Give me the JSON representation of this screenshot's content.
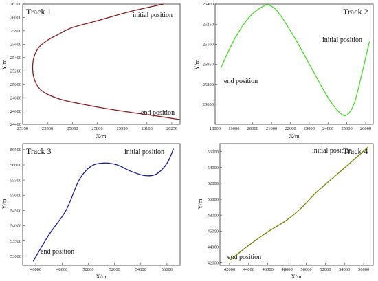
{
  "chart_data": [
    {
      "type": "line",
      "title": "Track 1",
      "xlabel": "X/m",
      "ylabel": "Y/m",
      "xlim": [
        25350,
        26300
      ],
      "ylim": [
        24400,
        26200
      ],
      "xticks": [
        25350,
        25500,
        25650,
        25800,
        25950,
        26100,
        26250
      ],
      "yticks": [
        24400,
        24600,
        24800,
        25000,
        25200,
        25400,
        25600,
        25800,
        26000,
        26200
      ],
      "series": [
        {
          "color": "#8b1a1a",
          "x": [
            26200,
            26000,
            25800,
            25650,
            25560,
            25500,
            25450,
            25420,
            25410,
            25420,
            25450,
            25500,
            25600,
            25800,
            26000,
            26200,
            26300
          ],
          "y": [
            26200,
            26090,
            25950,
            25850,
            25740,
            25660,
            25560,
            25420,
            25250,
            25080,
            24940,
            24850,
            24760,
            24660,
            24580,
            24510,
            24470
          ]
        }
      ],
      "annotations": [
        "initial position",
        "end position"
      ],
      "legend": "none"
    },
    {
      "type": "line",
      "title": "Track 2",
      "xlabel": "X/m",
      "ylabel": "Y/m",
      "xlim": [
        18000,
        26400
      ],
      "ylim": [
        25500,
        26400
      ],
      "xticks": [
        18000,
        19000,
        20000,
        21000,
        22000,
        23000,
        24000,
        25000,
        26000
      ],
      "yticks": [
        25650,
        25800,
        25950,
        26100,
        26250,
        26400
      ],
      "series": [
        {
          "color": "#44dd22",
          "x": [
            18300,
            19000,
            19800,
            20500,
            20900,
            21400,
            22300,
            23200,
            24000,
            24600,
            25000,
            25400,
            25800,
            26200
          ],
          "y": [
            25920,
            26130,
            26300,
            26380,
            26390,
            26330,
            26130,
            25900,
            25700,
            25590,
            25570,
            25660,
            25880,
            26120
          ]
        }
      ],
      "annotations": [
        "initial position",
        "end position"
      ],
      "legend": "none"
    },
    {
      "type": "line",
      "title": "Track 3",
      "xlabel": "X/m",
      "ylabel": "Y/m",
      "xlim": [
        45000,
        57000
      ],
      "ylim": [
        52700,
        56700
      ],
      "xticks": [
        46000,
        48000,
        50000,
        52000,
        54000,
        56000
      ],
      "yticks": [
        53000,
        53500,
        54000,
        54500,
        55000,
        55500,
        56000,
        56500
      ],
      "series": [
        {
          "color": "#1a1a9e",
          "x": [
            45800,
            47000,
            48300,
            49300,
            50200,
            51200,
            52200,
            53200,
            54300,
            55200,
            56000,
            56500
          ],
          "y": [
            52830,
            53700,
            54500,
            55500,
            55950,
            56060,
            56000,
            55800,
            55650,
            55700,
            56050,
            56530
          ]
        }
      ],
      "annotations": [
        "initial position",
        "end position"
      ],
      "legend": "none"
    },
    {
      "type": "line",
      "title": "Track 4",
      "xlabel": "X/m",
      "ylabel": "Y/m",
      "xlim": [
        41000,
        57000
      ],
      "ylim": [
        41700,
        57000
      ],
      "xticks": [
        42000,
        44000,
        46000,
        48000,
        50000,
        52000,
        54000,
        56000
      ],
      "yticks": [
        42000,
        44000,
        46000,
        48000,
        50000,
        52000,
        54000,
        56000
      ],
      "series": [
        {
          "color": "#7a8000",
          "x": [
            42000,
            44000,
            46000,
            48000,
            49500,
            51000,
            53000,
            55000,
            56500
          ],
          "y": [
            42300,
            44200,
            45900,
            47400,
            48900,
            50800,
            52900,
            55000,
            56600
          ]
        }
      ],
      "annotations": [
        "initial position",
        "end position"
      ],
      "legend": "none"
    }
  ]
}
